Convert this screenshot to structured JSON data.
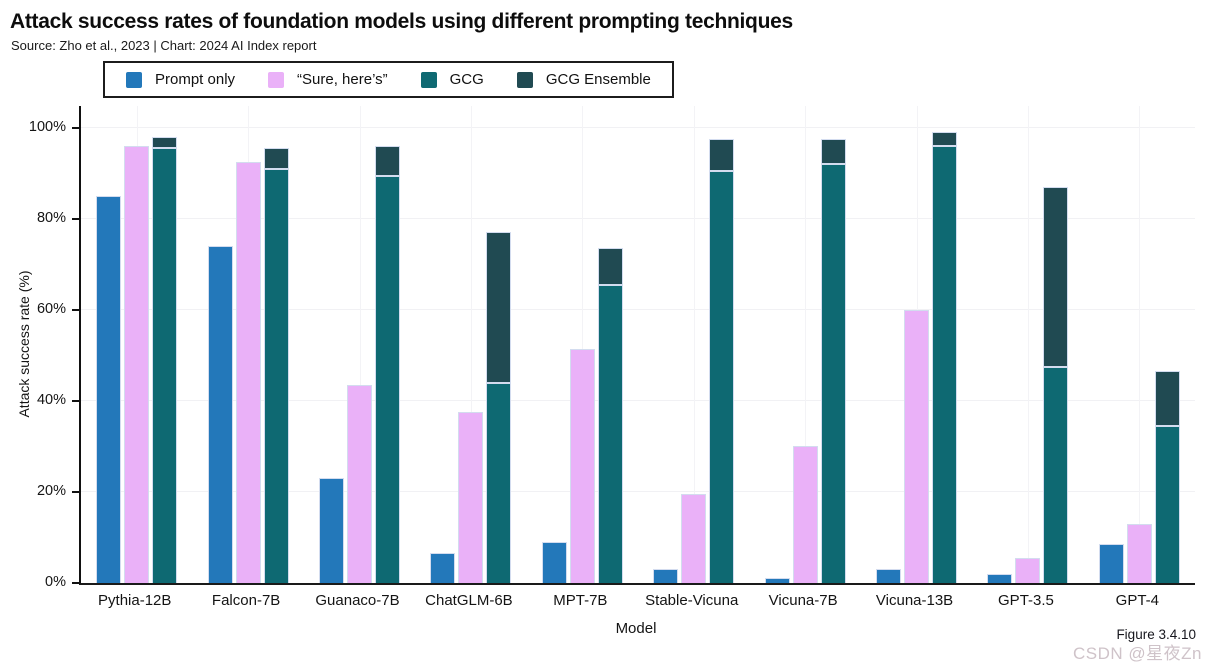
{
  "header": {
    "title": "Attack success rates of foundation models using different prompting techniques",
    "subtitle": "Source: Zho et al., 2023 | Chart: 2024 AI Index report"
  },
  "chart_data": {
    "type": "bar",
    "title": "Attack success rates of foundation models using different prompting techniques",
    "xlabel": "Model",
    "ylabel": "Attack success rate (%)",
    "ylim": [
      0,
      105
    ],
    "yticks": [
      0,
      20,
      40,
      60,
      80,
      100
    ],
    "ytick_labels": [
      "0%",
      "20%",
      "40%",
      "60%",
      "80%",
      "100%"
    ],
    "grid": true,
    "legend_position": "top",
    "categories": [
      "Pythia-12B",
      "Falcon-7B",
      "Guanaco-7B",
      "ChatGLM-6B",
      "MPT-7B",
      "Stable-Vicuna",
      "Vicuna-7B",
      "Vicuna-13B",
      "GPT-3.5",
      "GPT-4"
    ],
    "series": [
      {
        "name": "Prompt only",
        "color": "#2378ba",
        "values": [
          85,
          74,
          23,
          6.5,
          9,
          3,
          1,
          3,
          2,
          8.5
        ]
      },
      {
        "name": "“Sure, here’s”",
        "color": "#eab1f8",
        "values": [
          96,
          92.5,
          43.5,
          37.5,
          51.5,
          19.5,
          30,
          60,
          5.5,
          13
        ]
      },
      {
        "name": "GCG",
        "color": "#0e6972",
        "values": [
          95.5,
          91,
          89.5,
          44,
          65.5,
          90.5,
          92,
          96,
          47.5,
          34.5
        ]
      },
      {
        "name": "GCG Ensemble",
        "color": "#204a52",
        "values": [
          98,
          95.5,
          96,
          77,
          73.5,
          97.5,
          97.5,
          99,
          87,
          46.5
        ]
      }
    ],
    "stacking_note": "GCG Ensemble is drawn as a dark segment stacked above the GCG bar in the same column"
  },
  "footer": {
    "figure_label": "Figure 3.4.10",
    "watermark": "CSDN @星夜Zn"
  }
}
